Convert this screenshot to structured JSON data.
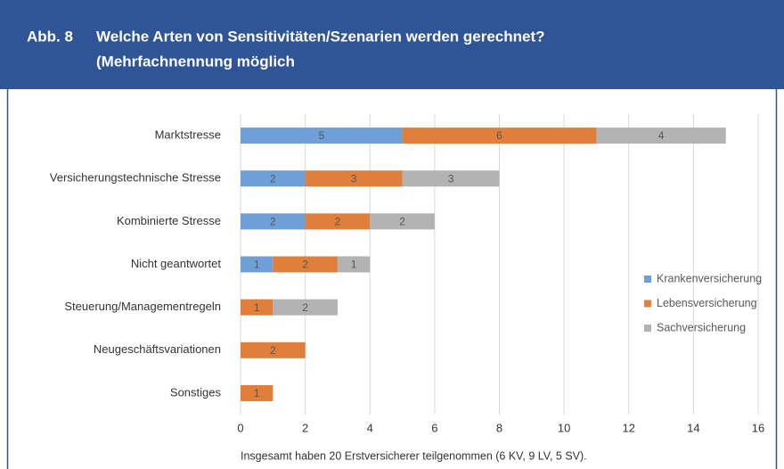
{
  "header": {
    "figure": "Abb. 8",
    "title_lines": [
      "Welche Arten von Sensitivitäten/Szenarien werden gerechnet?",
      "(Mehrfachnennung möglich"
    ]
  },
  "chart_data": {
    "type": "stacked_barh",
    "categories": [
      "Marktstresse",
      "Versicherungstechnische Stresse",
      "Kombinierte Stresse",
      "Nicht geantwortet",
      "Steuerung/Managementregeln",
      "Neugeschäftsvariationen",
      "Sonstiges"
    ],
    "series": [
      {
        "name": "Krankenversicherung",
        "color": "#6f9fd8",
        "values": [
          5,
          2,
          2,
          1,
          null,
          null,
          null
        ]
      },
      {
        "name": "Lebensversicherung",
        "color": "#e07f3c",
        "values": [
          6,
          3,
          2,
          2,
          1,
          2,
          1
        ]
      },
      {
        "name": "Sachversicherung",
        "color": "#b3b3b3",
        "values": [
          4,
          3,
          2,
          1,
          2,
          null,
          null
        ]
      }
    ],
    "xlim": [
      0,
      16
    ],
    "xticks": [
      0,
      2,
      4,
      6,
      8,
      10,
      12,
      14,
      16
    ],
    "grid": true,
    "legend": "right"
  },
  "footnote": "Insgesamt haben 20 Erstversicherer teilgenommen (6 KV, 9 LV, 5 SV)."
}
